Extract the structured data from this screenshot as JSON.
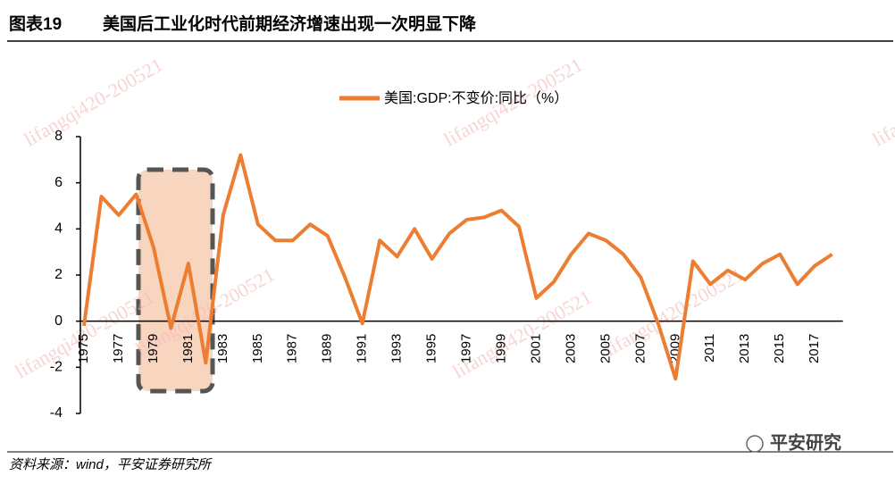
{
  "header": {
    "figure_label": "图表19",
    "title": "美国后工业化时代前期经济增速出现一次明显下降"
  },
  "chart_data": {
    "type": "line",
    "categories": [
      "1975",
      null,
      "1977",
      null,
      "1979",
      null,
      "1981",
      null,
      "1983",
      null,
      "1985",
      null,
      "1987",
      null,
      "1989",
      null,
      "1991",
      null,
      "1993",
      null,
      "1995",
      null,
      "1997",
      null,
      "1999",
      null,
      "2001",
      null,
      "2003",
      null,
      "2005",
      null,
      "2007",
      null,
      "2009",
      null,
      "2011",
      null,
      "2013",
      null,
      "2015",
      null,
      "2017",
      null
    ],
    "series": [
      {
        "name": "美国:GDP:不变价:同比（%）",
        "color": "#ED7D31",
        "values": [
          -0.2,
          5.4,
          4.6,
          5.5,
          3.2,
          -0.3,
          2.5,
          -1.8,
          4.6,
          7.2,
          4.2,
          3.5,
          3.5,
          4.2,
          3.7,
          1.9,
          -0.1,
          3.5,
          2.8,
          4.0,
          2.7,
          3.8,
          4.4,
          4.5,
          4.8,
          4.1,
          1.0,
          1.7,
          2.9,
          3.8,
          3.5,
          2.9,
          1.9,
          -0.1,
          -2.5,
          2.6,
          1.6,
          2.2,
          1.8,
          2.5,
          2.9,
          1.6,
          2.4,
          2.9
        ]
      }
    ],
    "ylim": [
      -4,
      8
    ],
    "yticks": [
      -4,
      -2,
      0,
      2,
      4,
      6,
      8
    ],
    "legend": "top"
  },
  "footer": {
    "source": "资料来源：wind，平安证券研究所",
    "logo": "平安研究"
  },
  "watermark": "lifangqi420-200521"
}
